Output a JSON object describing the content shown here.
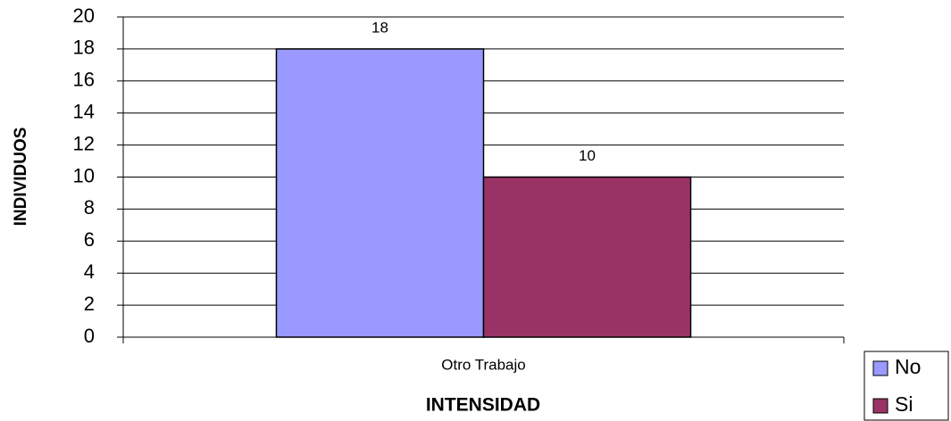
{
  "chart_data": {
    "type": "bar",
    "categories": [
      "Otro Trabajo"
    ],
    "series": [
      {
        "name": "No",
        "color": "#9999ff",
        "values": [
          18
        ]
      },
      {
        "name": "Si",
        "color": "#993366",
        "values": [
          10
        ]
      }
    ],
    "ylim": [
      0,
      20
    ],
    "yticks": [
      0,
      2,
      4,
      6,
      8,
      10,
      12,
      14,
      16,
      18,
      20
    ],
    "grid": true,
    "legend": "bottom-right",
    "x_label": "INTENSIDAD",
    "y_label": "INDIVIDUOS"
  }
}
